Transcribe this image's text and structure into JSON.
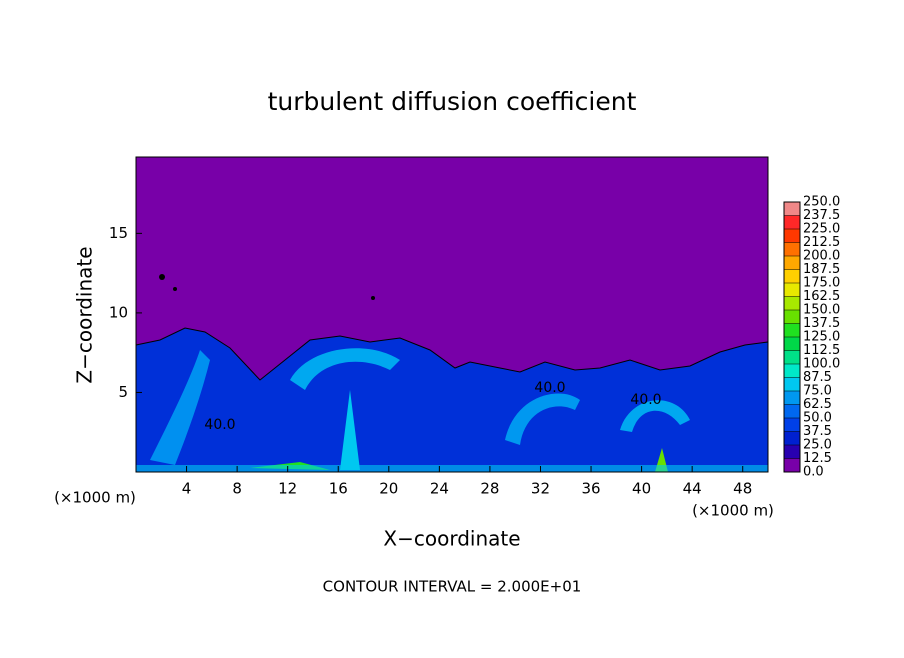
{
  "chart_data": {
    "type": "contour",
    "title": "turbulent diffusion coefficient",
    "x_label": "X−coordinate",
    "y_label": "Z−coordinate",
    "x_unit_label": "(×1000 m)",
    "annotation": "CONTOUR INTERVAL = 2.000E+01",
    "contour_labels": [
      "40.0",
      "40.0",
      "40.0"
    ],
    "xlim": [
      0,
      50
    ],
    "xticks": [
      4,
      8,
      12,
      16,
      20,
      24,
      28,
      32,
      36,
      40,
      44,
      48
    ],
    "ylim": [
      0,
      19.8
    ],
    "yticks": [
      5,
      10,
      15
    ],
    "background_color": "#7800a8",
    "colorbar": {
      "levels": [
        {
          "value": 0,
          "label": "0.0"
        },
        {
          "value": 12.5,
          "label": "12.5"
        },
        {
          "value": 25,
          "label": "25.0"
        },
        {
          "value": 37.5,
          "label": "37.5"
        },
        {
          "value": 50,
          "label": "50.0"
        },
        {
          "value": 62.5,
          "label": "62.5"
        },
        {
          "value": 75,
          "label": "75.0"
        },
        {
          "value": 87.5,
          "label": "87.5"
        },
        {
          "value": 100,
          "label": "100.0"
        },
        {
          "value": 112.5,
          "label": "112.5"
        },
        {
          "value": 125,
          "label": "125.0"
        },
        {
          "value": 137.5,
          "label": "137.5"
        },
        {
          "value": 150,
          "label": "150.0"
        },
        {
          "value": 162.5,
          "label": "162.5"
        },
        {
          "value": 175,
          "label": "175.0"
        },
        {
          "value": 187.5,
          "label": "187.5"
        },
        {
          "value": 200,
          "label": "200.0"
        },
        {
          "value": 212.5,
          "label": "212.5"
        },
        {
          "value": 225,
          "label": "225.0"
        },
        {
          "value": 237.5,
          "label": "237.5"
        },
        {
          "value": 250,
          "label": "250.0"
        }
      ],
      "colors": [
        "#7800a8",
        "#2800b0",
        "#0020d0",
        "#0040e8",
        "#0068f0",
        "#0098f0",
        "#00c8f0",
        "#00e8c8",
        "#00e088",
        "#00d848",
        "#20e020",
        "#68e000",
        "#a8e800",
        "#e8e800",
        "#ffd000",
        "#ffa800",
        "#ff7000",
        "#ff3800",
        "#ff2828",
        "#f08888"
      ]
    }
  }
}
